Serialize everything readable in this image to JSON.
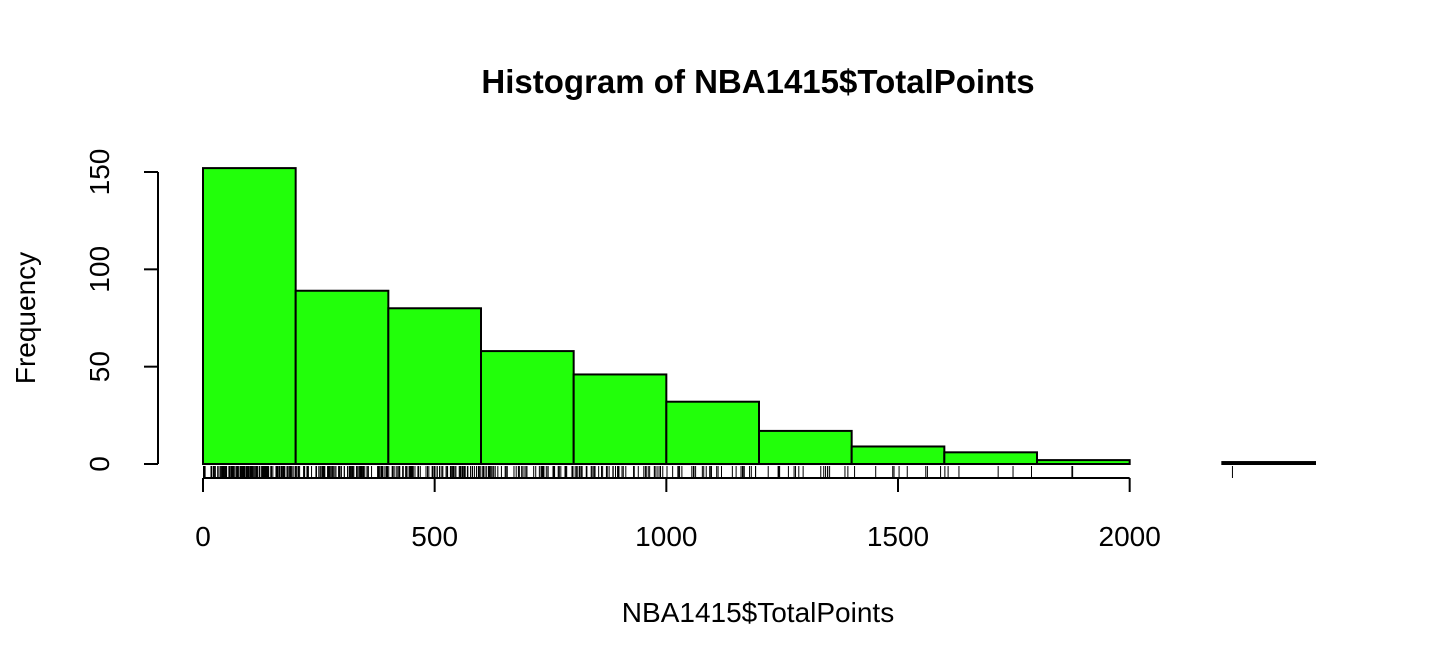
{
  "chart_data": {
    "type": "bar",
    "title": "Histogram of NBA1415$TotalPoints",
    "xlabel": "NBA1415$TotalPoints",
    "ylabel": "Frequency",
    "bin_edges": [
      0,
      200,
      400,
      600,
      800,
      1000,
      1200,
      1400,
      1600,
      1800,
      2000,
      2200,
      2400
    ],
    "values": [
      152,
      89,
      80,
      58,
      46,
      32,
      17,
      9,
      6,
      2,
      0,
      1
    ],
    "xlim": [
      0,
      2400
    ],
    "ylim": [
      0,
      152
    ],
    "x_ticks": [
      0,
      500,
      1000,
      1500,
      2000
    ],
    "y_ticks": [
      0,
      50,
      100,
      150
    ],
    "bar_color": "#22ff0a",
    "edge_color": "#000000",
    "rug": true,
    "grid": false
  }
}
